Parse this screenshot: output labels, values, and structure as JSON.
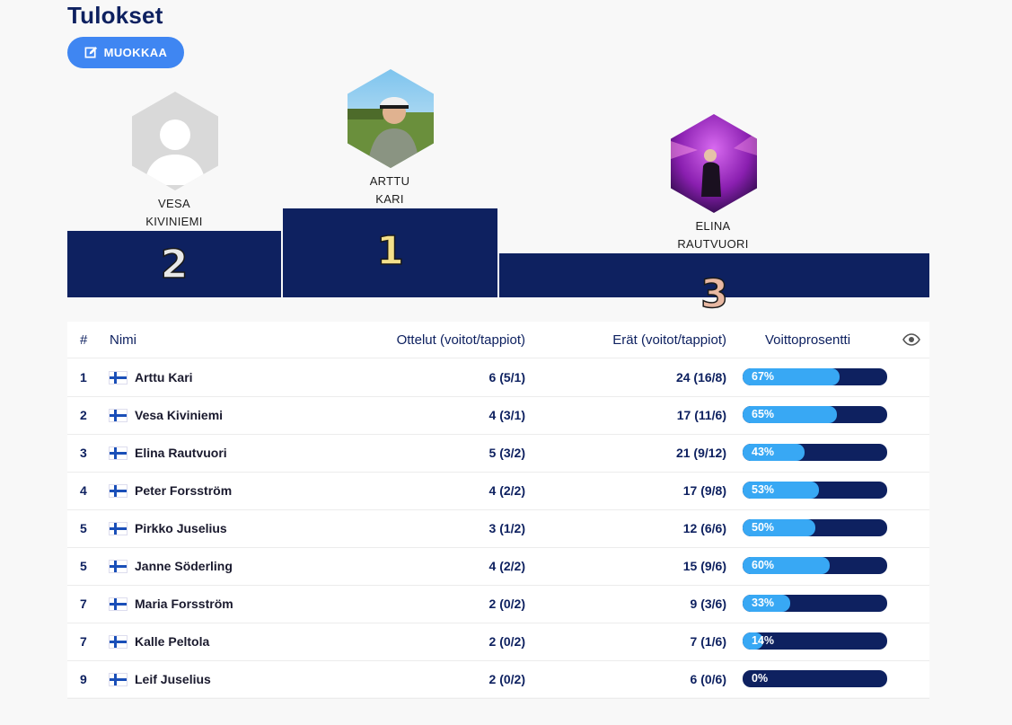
{
  "page": {
    "title": "Tulokset"
  },
  "toolbar": {
    "edit_label": "MUOKKAA",
    "edit_icon": "edit-icon"
  },
  "podium": {
    "first": {
      "rank": "1",
      "first": "ARTTU",
      "last": "KARI",
      "rank_color": "#f4e08a"
    },
    "second": {
      "rank": "2",
      "first": "VESA",
      "last": "KIVINIEMI",
      "rank_color": "#e8e8e8"
    },
    "third": {
      "rank": "3",
      "first": "ELINA",
      "last": "RAUTVUORI",
      "rank_color": "#e8b8a2"
    }
  },
  "table": {
    "headers": {
      "rank": "#",
      "name": "Nimi",
      "matches": "Ottelut (voitot/tappiot)",
      "sets": "Erät (voitot/tappiot)",
      "pct": "Voittoprosentti",
      "eye_icon": "eye-icon"
    },
    "rows": [
      {
        "rank": "1",
        "name": "Arttu Kari",
        "matches": "6 (5/1)",
        "sets": "24 (16/8)",
        "pct_label": "67%",
        "pct": 67
      },
      {
        "rank": "2",
        "name": "Vesa Kiviniemi",
        "matches": "4 (3/1)",
        "sets": "17 (11/6)",
        "pct_label": "65%",
        "pct": 65
      },
      {
        "rank": "3",
        "name": "Elina Rautvuori",
        "matches": "5 (3/2)",
        "sets": "21 (9/12)",
        "pct_label": "43%",
        "pct": 43
      },
      {
        "rank": "4",
        "name": "Peter Forsström",
        "matches": "4 (2/2)",
        "sets": "17 (9/8)",
        "pct_label": "53%",
        "pct": 53
      },
      {
        "rank": "5",
        "name": "Pirkko Juselius",
        "matches": "3 (1/2)",
        "sets": "12 (6/6)",
        "pct_label": "50%",
        "pct": 50
      },
      {
        "rank": "5",
        "name": "Janne Söderling",
        "matches": "4 (2/2)",
        "sets": "15 (9/6)",
        "pct_label": "60%",
        "pct": 60
      },
      {
        "rank": "7",
        "name": "Maria Forsström",
        "matches": "2 (0/2)",
        "sets": "9 (3/6)",
        "pct_label": "33%",
        "pct": 33
      },
      {
        "rank": "7",
        "name": "Kalle Peltola",
        "matches": "2 (0/2)",
        "sets": "7 (1/6)",
        "pct_label": "14%",
        "pct": 14
      },
      {
        "rank": "9",
        "name": "Leif Juselius",
        "matches": "2 (0/2)",
        "sets": "6 (0/6)",
        "pct_label": "0%",
        "pct": 0
      }
    ]
  },
  "colors": {
    "navy": "#0e2160",
    "accent": "#3f86f2",
    "bar_fill": "#38a8f4"
  }
}
